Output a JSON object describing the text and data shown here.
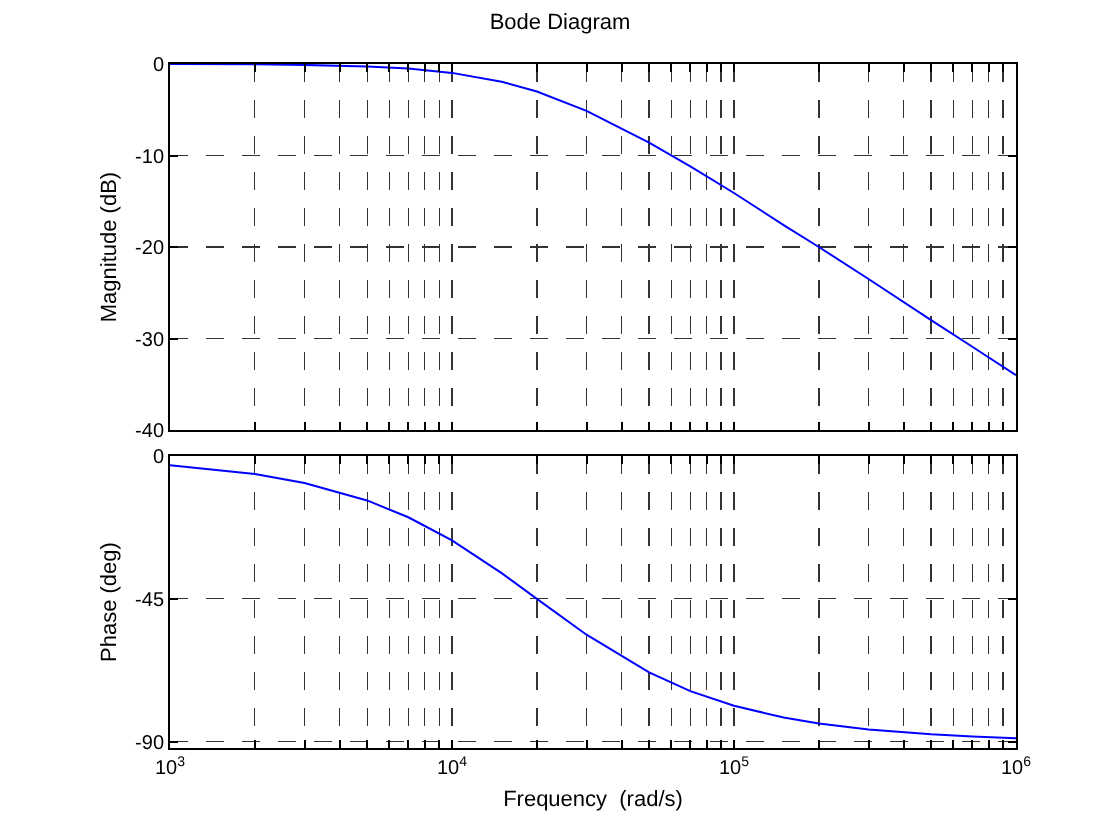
{
  "chart_data": [
    {
      "type": "line",
      "title": "Bode Diagram",
      "ylabel": "Magnitude (dB)",
      "log": "x",
      "grid": true,
      "line_style": "solid",
      "tick_labels": "y",
      "x": [
        1000,
        2000,
        3000,
        5000,
        7000,
        10000,
        15000,
        20000,
        30000,
        50000,
        70000,
        100000,
        150000,
        200000,
        300000,
        500000,
        700000,
        1000000
      ],
      "series": [
        {
          "color": "#0000ff",
          "values": [
            -0.01,
            -0.04,
            -0.1,
            -0.26,
            -0.5,
            -0.97,
            -1.94,
            -3.01,
            -5.12,
            -8.6,
            -11.2,
            -14.1,
            -17.6,
            -20.0,
            -23.5,
            -28.0,
            -30.9,
            -34.0
          ]
        }
      ],
      "xlim": [
        1000,
        1000000
      ],
      "xticks": [
        {
          "value": 1000,
          "label": null
        },
        {
          "value": 2000,
          "label": null
        },
        {
          "value": 3000,
          "label": null
        },
        {
          "value": 4000,
          "label": null
        },
        {
          "value": 5000,
          "label": null
        },
        {
          "value": 6000,
          "label": null
        },
        {
          "value": 7000,
          "label": null
        },
        {
          "value": 8000,
          "label": null
        },
        {
          "value": 9000,
          "label": null
        },
        {
          "value": 10000,
          "label": null
        },
        {
          "value": 20000,
          "label": null
        },
        {
          "value": 30000,
          "label": null
        },
        {
          "value": 40000,
          "label": null
        },
        {
          "value": 50000,
          "label": null
        },
        {
          "value": 60000,
          "label": null
        },
        {
          "value": 70000,
          "label": null
        },
        {
          "value": 80000,
          "label": null
        },
        {
          "value": 90000,
          "label": null
        },
        {
          "value": 100000,
          "label": null
        },
        {
          "value": 200000,
          "label": null
        },
        {
          "value": 300000,
          "label": null
        },
        {
          "value": 400000,
          "label": null
        },
        {
          "value": 500000,
          "label": null
        },
        {
          "value": 600000,
          "label": null
        },
        {
          "value": 700000,
          "label": null
        },
        {
          "value": 800000,
          "label": null
        },
        {
          "value": 900000,
          "label": null
        },
        {
          "value": 1000000,
          "label": null
        }
      ],
      "ylim": [
        -40,
        0
      ],
      "yticks": [
        -40,
        -30,
        -20,
        -10,
        0
      ]
    },
    {
      "type": "line",
      "xlabel": "Frequency  (rad/s)",
      "ylabel": "Phase (deg)",
      "log": "x",
      "grid": true,
      "line_style": "solid",
      "x": [
        1000,
        2000,
        3000,
        5000,
        7000,
        10000,
        15000,
        20000,
        30000,
        50000,
        70000,
        100000,
        150000,
        200000,
        300000,
        500000,
        700000,
        1000000
      ],
      "series": [
        {
          "color": "#0000ff",
          "values": [
            -2.9,
            -5.7,
            -8.5,
            -14.0,
            -19.3,
            -26.6,
            -36.9,
            -45.0,
            -56.3,
            -68.2,
            -74.1,
            -78.7,
            -82.4,
            -84.3,
            -86.2,
            -87.7,
            -88.4,
            -88.9
          ]
        }
      ],
      "xlim": [
        1000,
        1000000
      ],
      "xticks": [
        {
          "value": 1000,
          "label": "10$^{3}$"
        },
        {
          "value": 2000,
          "label": null
        },
        {
          "value": 3000,
          "label": null
        },
        {
          "value": 4000,
          "label": null
        },
        {
          "value": 5000,
          "label": null
        },
        {
          "value": 6000,
          "label": null
        },
        {
          "value": 7000,
          "label": null
        },
        {
          "value": 8000,
          "label": null
        },
        {
          "value": 9000,
          "label": null
        },
        {
          "value": 10000,
          "label": "10$^{4}$"
        },
        {
          "value": 20000,
          "label": null
        },
        {
          "value": 30000,
          "label": null
        },
        {
          "value": 40000,
          "label": null
        },
        {
          "value": 50000,
          "label": null
        },
        {
          "value": 60000,
          "label": null
        },
        {
          "value": 70000,
          "label": null
        },
        {
          "value": 80000,
          "label": null
        },
        {
          "value": 90000,
          "label": null
        },
        {
          "value": 100000,
          "label": "10$^{5}$"
        },
        {
          "value": 200000,
          "label": null
        },
        {
          "value": 300000,
          "label": null
        },
        {
          "value": 400000,
          "label": null
        },
        {
          "value": 500000,
          "label": null
        },
        {
          "value": 600000,
          "label": null
        },
        {
          "value": 700000,
          "label": null
        },
        {
          "value": 800000,
          "label": null
        },
        {
          "value": 900000,
          "label": null
        },
        {
          "value": 1000000,
          "label": "10$^{6}$"
        }
      ],
      "ylim": [
        -92,
        0
      ],
      "yticks": [
        -90,
        -45,
        0
      ]
    }
  ]
}
